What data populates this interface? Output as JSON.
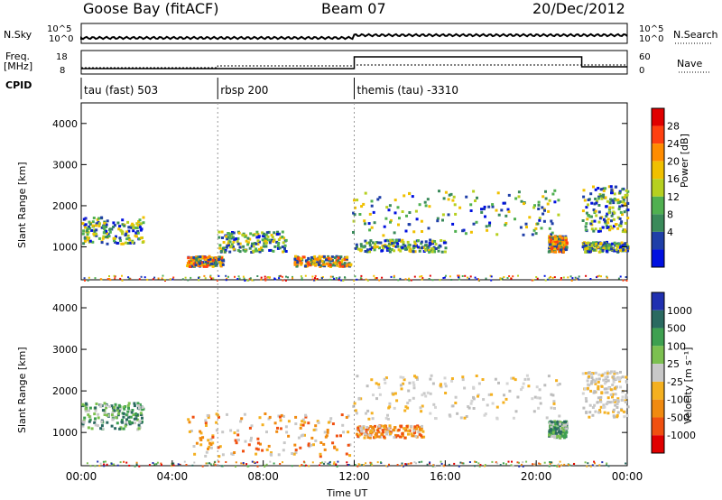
{
  "header": {
    "station": "Goose Bay (fitACF)",
    "beam": "Beam 07",
    "date": "20/Dec/2012"
  },
  "top_panels": {
    "nsky_label": "N.Sky",
    "nsky_ticks": [
      "10^5",
      "10^0"
    ],
    "nsearch_label": "N.Search",
    "freq_label": "Freq.",
    "freq_unit": "[MHz]",
    "freq_ticks": [
      "18",
      "8"
    ],
    "nave_label": "Nave",
    "nave_ticks": [
      "60",
      "0"
    ],
    "cpid_label": "CPID",
    "cpid_segments": [
      {
        "label": "tau (fast) 503",
        "start_h": 0
      },
      {
        "label": "rbsp 200",
        "start_h": 6
      },
      {
        "label": "themis (tau) -3310",
        "start_h": 12
      }
    ]
  },
  "power_colorbar": {
    "label": "Power [dB]",
    "ticks": [
      "28",
      "24",
      "20",
      "16",
      "12",
      "8",
      "4"
    ],
    "colors": [
      "#e00000",
      "#ff4010",
      "#ff8c00",
      "#f0c000",
      "#b6d020",
      "#50b050",
      "#3a8a5a",
      "#1f3fa8",
      "#0010e0"
    ]
  },
  "velocity_colorbar": {
    "label": "Velocity [m s⁻¹]",
    "ticks": [
      "1000",
      "500",
      "100",
      "25",
      "-25",
      "-100",
      "-500",
      "-1000"
    ],
    "colors": [
      "#2030b0",
      "#2a6a60",
      "#3ea050",
      "#7cc050",
      "#c8c8c8",
      "#f4b020",
      "#f08a10",
      "#f05010",
      "#e00000"
    ]
  },
  "chart_data": [
    {
      "type": "heatmap",
      "name": "Power",
      "ylabel": "Slant Range [km]",
      "ylim": [
        200,
        4500
      ],
      "yticks": [
        1000,
        2000,
        3000,
        4000
      ],
      "xlim": [
        0,
        24
      ],
      "regions": [
        {
          "t0": 0.0,
          "t1": 2.7,
          "r0": 1100,
          "r1": 1750,
          "level": "mid"
        },
        {
          "t0": 4.6,
          "t1": 6.2,
          "r0": 550,
          "r1": 800,
          "level": "high"
        },
        {
          "t0": 6.0,
          "t1": 9.0,
          "r0": 900,
          "r1": 1400,
          "level": "mid"
        },
        {
          "t0": 9.3,
          "t1": 11.8,
          "r0": 550,
          "r1": 800,
          "level": "high"
        },
        {
          "t0": 11.8,
          "t1": 21.0,
          "r0": 1300,
          "r1": 2400,
          "level": "mid"
        },
        {
          "t0": 12.0,
          "t1": 16.0,
          "r0": 900,
          "r1": 1200,
          "level": "mid"
        },
        {
          "t0": 20.5,
          "t1": 21.3,
          "r0": 900,
          "r1": 1300,
          "level": "high"
        },
        {
          "t0": 22.0,
          "t1": 24.0,
          "r0": 1400,
          "r1": 2500,
          "level": "mid"
        },
        {
          "t0": 22.0,
          "t1": 24.0,
          "r0": 900,
          "r1": 1150,
          "level": "mid"
        }
      ]
    },
    {
      "type": "heatmap",
      "name": "Velocity",
      "ylabel": "Slant Range [km]",
      "ylim": [
        200,
        4500
      ],
      "yticks": [
        1000,
        2000,
        3000,
        4000
      ],
      "xlim": [
        0,
        24
      ],
      "xticks": [
        "00:00",
        "04:00",
        "08:00",
        "12:00",
        "16:00",
        "20:00",
        "00:00"
      ],
      "xlabel": "Time UT",
      "regions": [
        {
          "t0": 0.0,
          "t1": 2.7,
          "r0": 1100,
          "r1": 1750,
          "level": "toward"
        },
        {
          "t0": 4.6,
          "t1": 11.8,
          "r0": 450,
          "r1": 1500,
          "level": "away"
        },
        {
          "t0": 11.8,
          "t1": 21.0,
          "r0": 1300,
          "r1": 2400,
          "level": "zero"
        },
        {
          "t0": 12.0,
          "t1": 15.0,
          "r0": 900,
          "r1": 1200,
          "level": "away"
        },
        {
          "t0": 20.5,
          "t1": 21.3,
          "r0": 900,
          "r1": 1300,
          "level": "toward"
        },
        {
          "t0": 22.0,
          "t1": 24.0,
          "r0": 1400,
          "r1": 2500,
          "level": "zero"
        }
      ]
    }
  ]
}
